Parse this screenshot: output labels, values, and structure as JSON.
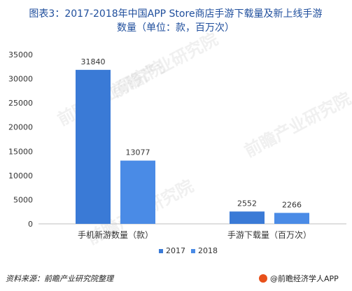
{
  "title": {
    "line1": "图表3：2017-2018年中国APP Store商店手游下载量及新上线手游",
    "line2": "数量（单位：款，百万次）"
  },
  "chart_data": {
    "type": "bar",
    "categories": [
      "手机新游数量（款）",
      "手游下载量（百万次）"
    ],
    "series": [
      {
        "name": "2017",
        "values": [
          31840,
          2552
        ],
        "color": "#3a7ad6"
      },
      {
        "name": "2018",
        "values": [
          13077,
          2266
        ],
        "color": "#4a8be6"
      }
    ],
    "ylim": [
      0,
      35000
    ],
    "yticks": [
      0,
      5000,
      10000,
      15000,
      20000,
      25000,
      30000,
      35000
    ],
    "grid": false,
    "legend": "bottom"
  },
  "footer": {
    "source": "资料来源：前瞻产业研究院整理",
    "brand": "@前瞻经济学人APP",
    "brand_color": "#e8501a"
  },
  "watermarks": [
    "前瞻产业研究院",
    "前瞻产业研究院",
    "前瞻产业研究院",
    "前瞻产业研究院"
  ]
}
